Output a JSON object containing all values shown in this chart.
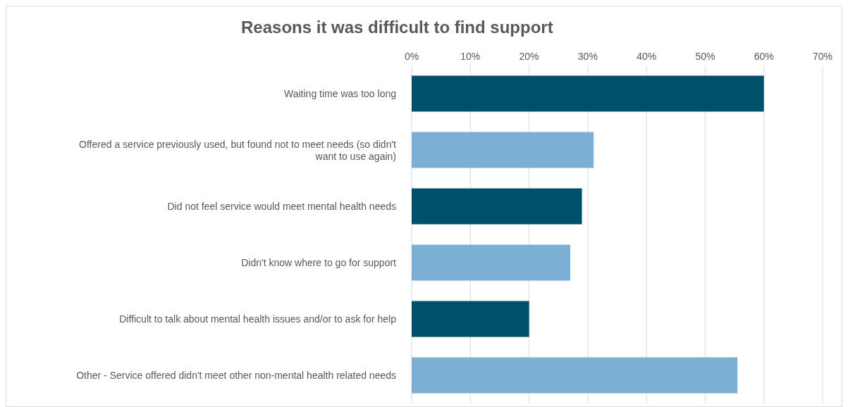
{
  "chart_data": {
    "type": "bar",
    "orientation": "horizontal",
    "title": "Reasons it was difficult to find support",
    "categories": [
      "Waiting time was too long",
      "Offered a service previously used, but found not to meet needs (so didn't want to use again)",
      "Did not feel service would meet mental health needs",
      "Didn't know where to go for support",
      "Difficult to talk about mental health issues and/or to ask for help",
      "Other - Service offered didn't meet other non-mental health related needs"
    ],
    "values": [
      60,
      31,
      29,
      27,
      20,
      55.5
    ],
    "colors": [
      "#00506b",
      "#7bafd4",
      "#00506b",
      "#7bafd4",
      "#00506b",
      "#7bafd4"
    ],
    "xlim": [
      0,
      70
    ],
    "xticks": [
      {
        "value": 0,
        "label": "0%"
      },
      {
        "value": 10,
        "label": "10%"
      },
      {
        "value": 20,
        "label": "20%"
      },
      {
        "value": 30,
        "label": "30%"
      },
      {
        "value": 40,
        "label": "40%"
      },
      {
        "value": 50,
        "label": "50%"
      },
      {
        "value": 60,
        "label": "60%"
      },
      {
        "value": 70,
        "label": "70%"
      }
    ],
    "grid": "x"
  }
}
